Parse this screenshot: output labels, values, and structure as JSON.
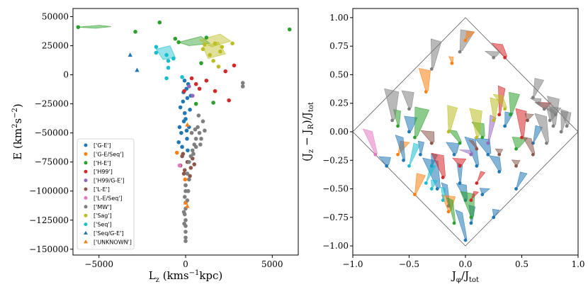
{
  "chart_data": [
    {
      "type": "scatter",
      "xlabel": "L_z (kms^-1 kpc)",
      "ylabel": "E (km^2 s^-2)",
      "xlim": [
        -6500,
        6500
      ],
      "ylim": [
        -155000,
        57000
      ],
      "xticks": [
        -5000,
        0,
        5000
      ],
      "xtick_labels": [
        "−5000",
        "0",
        "5000"
      ],
      "yticks": [
        50000,
        25000,
        0,
        -25000,
        -50000,
        -75000,
        -100000,
        -125000,
        -150000
      ],
      "ytick_labels": [
        "50000",
        "25000",
        "0",
        "−25000",
        "−50000",
        "−75000",
        "−100000",
        "−125000",
        "−150000"
      ],
      "legend_placement": "lower-left",
      "colors": {
        "G-E": "#1f77b4",
        "G-E/Seq": "#ff7f0e",
        "H-E": "#2ca02c",
        "H99": "#d62728",
        "H99/G-E": "#9467bd",
        "L-E": "#8c564b",
        "L-E/Seq": "#e377c2",
        "MW": "#7f7f7f",
        "Sag": "#bcbd22",
        "Seq": "#17becf",
        "Seq/G-E": "#1f77b4",
        "UNKNOWN": "#ff7f0e"
      },
      "series": [
        {
          "name": "['G-E']",
          "marker": "circle",
          "color": "#1f77b4",
          "points": [
            [
              -100,
              -40000
            ],
            [
              -250,
              -50000
            ],
            [
              -400,
              -58000
            ],
            [
              100,
              -20000
            ],
            [
              -50,
              -33000
            ],
            [
              200,
              -45000
            ],
            [
              -300,
              -28000
            ],
            [
              50,
              -12000
            ],
            [
              250,
              -30000
            ],
            [
              -150,
              -23000
            ],
            [
              150,
              -8000
            ],
            [
              0,
              -38000
            ],
            [
              -200,
              -62000
            ],
            [
              80,
              -55000
            ],
            [
              -350,
              -45000
            ],
            [
              300,
              -18000
            ],
            [
              -120,
              -15000
            ],
            [
              120,
              -65000
            ],
            [
              -60,
              -5000
            ],
            [
              60,
              -48000
            ]
          ]
        },
        {
          "name": "['G-E/Seq']",
          "marker": "circle",
          "color": "#ff7f0e",
          "points": [
            [
              -500,
              -67000
            ],
            [
              -30,
              -90000
            ]
          ]
        },
        {
          "name": "['H-E']",
          "marker": "circle",
          "color": "#2ca02c",
          "points": [
            [
              -6200,
              41000
            ],
            [
              -2900,
              37000
            ],
            [
              -1500,
              45000
            ],
            [
              -600,
              31000
            ],
            [
              600,
              -25000
            ],
            [
              1200,
              32000
            ],
            [
              900,
              10000
            ],
            [
              6000,
              39000
            ],
            [
              1600,
              -24000
            ],
            [
              -400,
              28000
            ]
          ]
        },
        {
          "name": "['H99']",
          "marker": "circle",
          "color": "#d62728",
          "points": [
            [
              1200,
              -5000
            ],
            [
              800,
              -12000
            ],
            [
              1700,
              -14000
            ],
            [
              2500,
              -22000
            ],
            [
              2800,
              8000
            ],
            [
              2300,
              3000
            ],
            [
              350,
              -3000
            ],
            [
              -80,
              -14000
            ],
            [
              600,
              -8000
            ]
          ]
        },
        {
          "name": "['H99/G-E']",
          "marker": "circle",
          "color": "#9467bd",
          "points": [
            [
              200,
              -10000
            ],
            [
              400,
              -18000
            ]
          ]
        },
        {
          "name": "['L-E']",
          "marker": "circle",
          "color": "#8c564b",
          "points": [
            [
              -200,
              -70000
            ],
            [
              100,
              -75000
            ],
            [
              300,
              -80000
            ],
            [
              -100,
              -85000
            ],
            [
              200,
              -90000
            ],
            [
              -300,
              -78000
            ],
            [
              400,
              -72000
            ],
            [
              0,
              -95000
            ],
            [
              -150,
              -68000
            ],
            [
              250,
              -87000
            ],
            [
              500,
              -77000
            ],
            [
              -50,
              -82000
            ]
          ]
        },
        {
          "name": "['L-E/Seq']",
          "marker": "circle",
          "color": "#e377c2",
          "points": [
            [
              -350,
              -78000
            ]
          ]
        },
        {
          "name": "['MW']",
          "marker": "circle",
          "color": "#7f7f7f",
          "points": [
            [
              3300,
              -7000
            ],
            [
              3300,
              -10000
            ],
            [
              1000,
              -40000
            ],
            [
              800,
              -50000
            ],
            [
              600,
              -55000
            ],
            [
              500,
              -60000
            ],
            [
              400,
              -65000
            ],
            [
              300,
              -70000
            ],
            [
              200,
              -75000
            ],
            [
              100,
              -85000
            ],
            [
              0,
              -95000
            ],
            [
              0,
              -100000
            ],
            [
              -50,
              -105000
            ],
            [
              0,
              -110000
            ],
            [
              0,
              -115000
            ],
            [
              -50,
              -120000
            ],
            [
              0,
              -125000
            ],
            [
              0,
              -130000
            ],
            [
              0,
              -135000
            ],
            [
              0,
              -140000
            ],
            [
              0,
              -143000
            ],
            [
              700,
              -45000
            ],
            [
              900,
              -55000
            ],
            [
              600,
              -62000
            ],
            [
              450,
              -68000
            ],
            [
              1100,
              -48000
            ],
            [
              200,
              -90000
            ],
            [
              350,
              -50000
            ],
            [
              750,
              -35000
            ],
            [
              550,
              -47000
            ],
            [
              150,
              -100000
            ],
            [
              -100,
              -118000
            ],
            [
              100,
              -108000
            ],
            [
              850,
              -60000
            ],
            [
              -80,
              -128000
            ]
          ]
        },
        {
          "name": "['Sag']",
          "marker": "circle",
          "color": "#bcbd22",
          "points": [
            [
              1100,
              26000
            ],
            [
              1400,
              17000
            ],
            [
              1700,
              27000
            ],
            [
              2100,
              24000
            ],
            [
              2700,
              27000
            ],
            [
              1000,
              22000
            ],
            [
              2000,
              20000
            ],
            [
              1600,
              12000
            ],
            [
              1900,
              7000
            ]
          ]
        },
        {
          "name": "['Seq']",
          "marker": "circle",
          "color": "#17becf",
          "points": [
            [
              -1700,
              24000
            ],
            [
              -1700,
              19000
            ],
            [
              -1100,
              17000
            ],
            [
              -1000,
              12000
            ],
            [
              -1000,
              6000
            ],
            [
              -700,
              14000
            ],
            [
              -1100,
              -3000
            ],
            [
              -200,
              -2000
            ]
          ]
        },
        {
          "name": "['Seq/G-E']",
          "marker": "triangle",
          "color": "#1f77b4",
          "points": [
            [
              -3200,
              17000
            ],
            [
              -2800,
              4000
            ]
          ]
        },
        {
          "name": "['UNKNOWN']",
          "marker": "triangle",
          "color": "#ff7f0e",
          "points": [
            [
              100,
              -43000
            ],
            [
              0,
              -110000
            ],
            [
              100,
              -113000
            ]
          ]
        }
      ]
    },
    {
      "type": "scatter",
      "xlabel": "J_φ/J_tot",
      "ylabel": "(J_z − J_R)/J_tot",
      "xlim": [
        -1.0,
        1.0
      ],
      "ylim": [
        -1.08,
        1.08
      ],
      "xticks": [
        -1.0,
        -0.5,
        0.0,
        0.5,
        1.0
      ],
      "xtick_labels": [
        "−1.0",
        "−0.5",
        "0.0",
        "0.5",
        "1.0"
      ],
      "yticks": [
        1.0,
        0.75,
        0.5,
        0.25,
        0.0,
        -0.25,
        -0.5,
        -0.75,
        -1.0
      ],
      "ytick_labels": [
        "1.00",
        "0.75",
        "0.50",
        "0.25",
        "0.00",
        "−0.25",
        "−0.50",
        "−0.75",
        "−1.00"
      ],
      "boundary": "diamond |x|+|y|=1",
      "series": [
        {
          "name": "['G-E']",
          "color": "#1f77b4",
          "points": [
            [
              -0.05,
              -0.45
            ],
            [
              0.0,
              -0.6
            ],
            [
              0.1,
              -0.3
            ],
            [
              -0.1,
              -0.2
            ],
            [
              0.15,
              -0.55
            ],
            [
              -0.15,
              -0.65
            ],
            [
              0.05,
              -0.8
            ],
            [
              -0.25,
              -0.5
            ],
            [
              0.2,
              -0.2
            ],
            [
              0.3,
              -0.35
            ],
            [
              -0.3,
              -0.3
            ],
            [
              0.45,
              -0.5
            ],
            [
              -0.4,
              -0.2
            ],
            [
              0.35,
              0.05
            ],
            [
              0.0,
              -0.95
            ],
            [
              0.6,
              -0.1
            ],
            [
              -0.5,
              0.0
            ],
            [
              0.25,
              -0.75
            ]
          ]
        },
        {
          "name": "['G-E/Seq']",
          "color": "#ff7f0e",
          "points": [
            [
              -0.12,
              0.6
            ],
            [
              -0.35,
              0.35
            ],
            [
              -0.6,
              -0.2
            ],
            [
              -0.15,
              -0.7
            ]
          ]
        },
        {
          "name": "['H-E']",
          "color": "#2ca02c",
          "points": [
            [
              -0.6,
              0.05
            ],
            [
              -0.1,
              -0.8
            ],
            [
              0.05,
              -0.75
            ],
            [
              -0.45,
              -0.05
            ],
            [
              0.4,
              0.15
            ],
            [
              -0.05,
              -0.1
            ],
            [
              0.15,
              -0.05
            ],
            [
              0.45,
              -0.15
            ]
          ]
        },
        {
          "name": "['H99']",
          "color": "#d62728",
          "points": [
            [
              0.35,
              0.65
            ],
            [
              0.7,
              0.2
            ],
            [
              0.5,
              -0.05
            ],
            [
              -0.05,
              -0.3
            ],
            [
              0.1,
              -0.45
            ],
            [
              -0.2,
              -0.4
            ],
            [
              0.3,
              0.15
            ],
            [
              0.05,
              -0.6
            ]
          ]
        },
        {
          "name": "['H99/G-E']",
          "color": "#9467bd",
          "points": [
            [
              0.05,
              -0.2
            ],
            [
              0.2,
              -0.1
            ]
          ]
        },
        {
          "name": "['L-E']",
          "color": "#8c564b",
          "points": [
            [
              0.3,
              -0.2
            ],
            [
              0.45,
              -0.3
            ],
            [
              -0.3,
              -0.1
            ],
            [
              0.1,
              -0.15
            ],
            [
              0.55,
              0.1
            ],
            [
              0.6,
              -0.2
            ]
          ]
        },
        {
          "name": "['L-E/Seq']",
          "color": "#e377c2",
          "points": [
            [
              -0.8,
              -0.2
            ]
          ]
        },
        {
          "name": "['MW']",
          "color": "#7f7f7f",
          "points": [
            [
              0.75,
              0.1
            ],
            [
              0.85,
              0.0
            ],
            [
              0.7,
              0.2
            ],
            [
              0.8,
              0.15
            ],
            [
              0.65,
              0.25
            ],
            [
              0.9,
              0.05
            ],
            [
              0.6,
              0.3
            ],
            [
              0.72,
              -0.1
            ],
            [
              0.78,
              0.05
            ],
            [
              -0.65,
              0.1
            ],
            [
              -0.5,
              0.2
            ],
            [
              -0.3,
              0.55
            ],
            [
              -0.05,
              0.7
            ],
            [
              0.25,
              0.65
            ]
          ]
        },
        {
          "name": "['Sag']",
          "color": "#bcbd22",
          "points": [
            [
              0.25,
              0.1
            ],
            [
              -0.15,
              0.0
            ],
            [
              0.1,
              -0.05
            ],
            [
              0.35,
              0.2
            ]
          ]
        },
        {
          "name": "['Seq']",
          "color": "#17becf",
          "points": [
            [
              -0.5,
              -0.3
            ],
            [
              -0.3,
              -0.5
            ],
            [
              -0.2,
              -0.6
            ],
            [
              -0.35,
              -0.45
            ]
          ]
        },
        {
          "name": "['Seq/G-E']",
          "color": "#1f77b4",
          "points": [
            [
              -0.7,
              -0.3
            ],
            [
              -0.55,
              -0.25
            ]
          ]
        },
        {
          "name": "['UNKNOWN']",
          "color": "#ff7f0e",
          "points": [
            [
              -0.45,
              -0.55
            ],
            [
              0.0,
              0.8
            ]
          ]
        }
      ]
    }
  ],
  "legend_entries": [
    "['G-E']",
    "['G-E/Seq']",
    "['H-E']",
    "['H99']",
    "['H99/G-E']",
    "['L-E']",
    "['L-E/Seq']",
    "['MW']",
    "['Sag']",
    "['Seq']",
    "['Seq/G-E']",
    "['UNKNOWN']"
  ]
}
